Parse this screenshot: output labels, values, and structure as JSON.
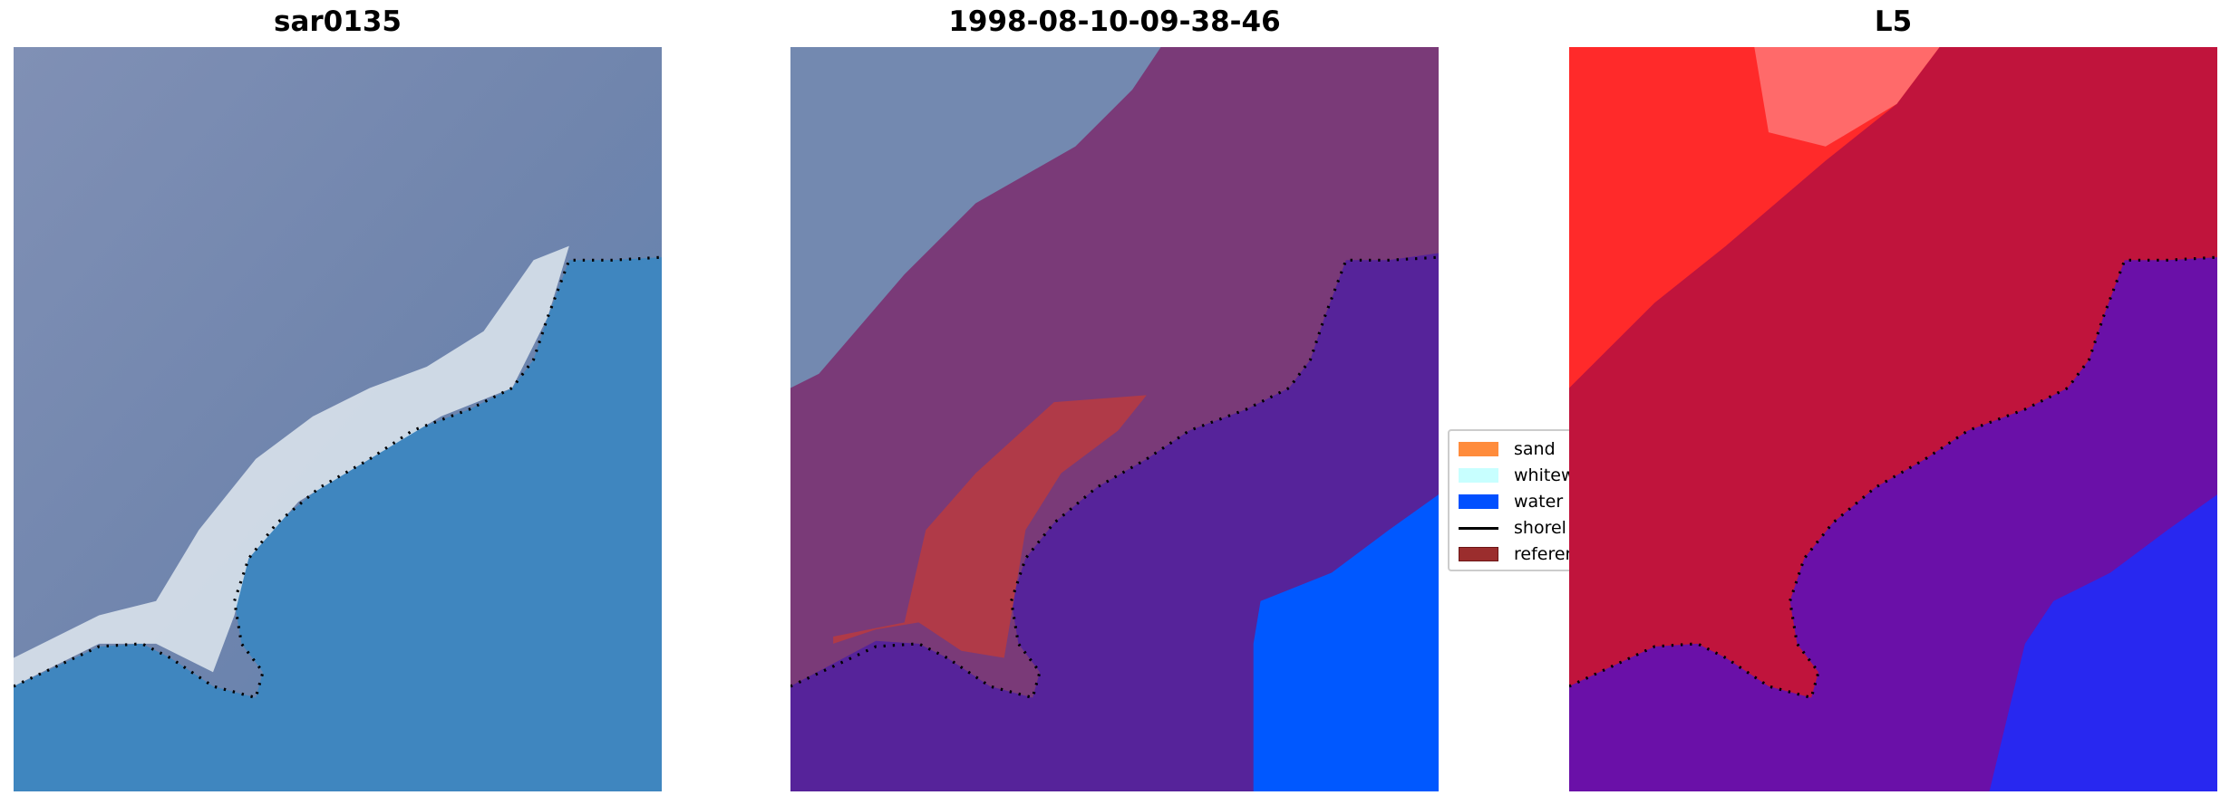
{
  "panels": [
    {
      "title": "sar0135"
    },
    {
      "title": "1998-08-10-09-38-46"
    },
    {
      "title": "L5"
    }
  ],
  "legend": {
    "items": [
      {
        "label": "sand",
        "color": "#ff8c3c"
      },
      {
        "label": "whitew",
        "color": "#c8ffff"
      },
      {
        "label": "water",
        "color": "#0050ff"
      },
      {
        "label": "shorel",
        "color": "#000000"
      },
      {
        "label": "referer",
        "color": "#9b2d2d"
      }
    ]
  }
}
